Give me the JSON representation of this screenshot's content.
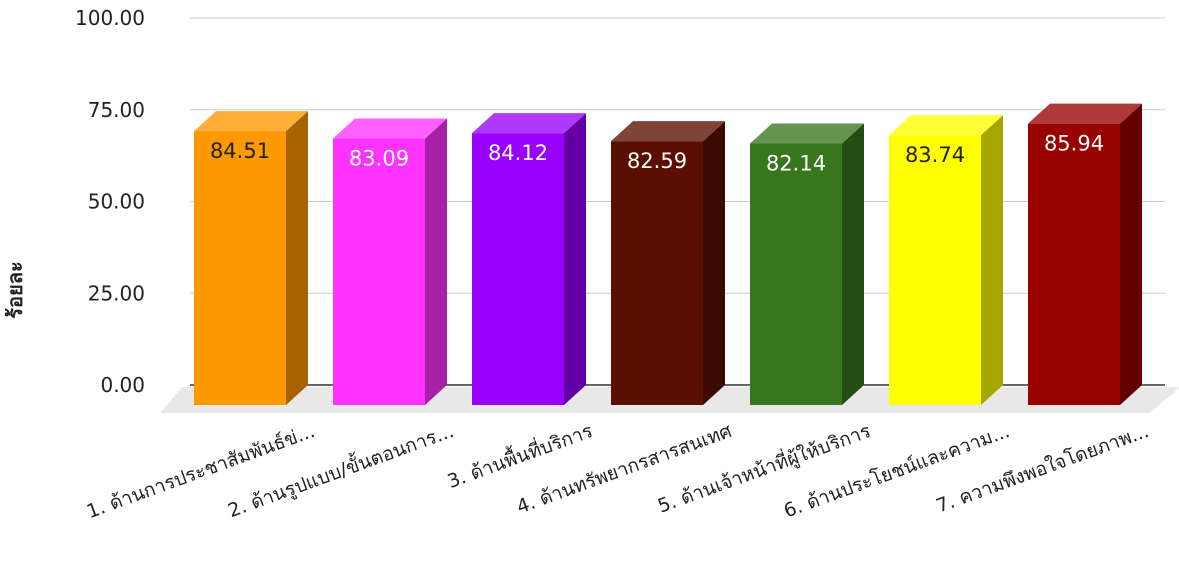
{
  "chart_data": {
    "type": "bar",
    "title": "",
    "xlabel": "",
    "ylabel": "ร้อยละ",
    "ylim": [
      0,
      100
    ],
    "yticks": [
      "0.00",
      "25.00",
      "50.00",
      "75.00",
      "100.00"
    ],
    "grid": true,
    "legend": "none",
    "categories": [
      "1. ด้านการประชาสัมพันธ์ข่...",
      "2. ด้านรูปแบบ/ขั้นตอนการ...",
      "3. ด้านพื้นที่บริการ",
      "4. ด้านทรัพยากรสารสนเทศ",
      "5. ด้านเจ้าหน้าที่ผู้ให้บริการ",
      "6. ด้านประโยชน์และความ...",
      "7. ความพึงพอใจโดยภาพ..."
    ],
    "values": [
      84.51,
      83.09,
      84.12,
      82.59,
      82.14,
      83.74,
      85.94
    ],
    "data_labels": [
      "84.51",
      "83.09",
      "84.12",
      "82.59",
      "82.14",
      "83.74",
      "85.94"
    ],
    "colors": [
      "#FF9900",
      "#FF33FF",
      "#9900FF",
      "#5B0F00",
      "#38761D",
      "#FFFF00",
      "#990000"
    ],
    "label_colors": [
      "#222222",
      "#ffffff",
      "#ffffff",
      "#ffffff",
      "#ffffff",
      "#222222",
      "#ffffff"
    ]
  }
}
